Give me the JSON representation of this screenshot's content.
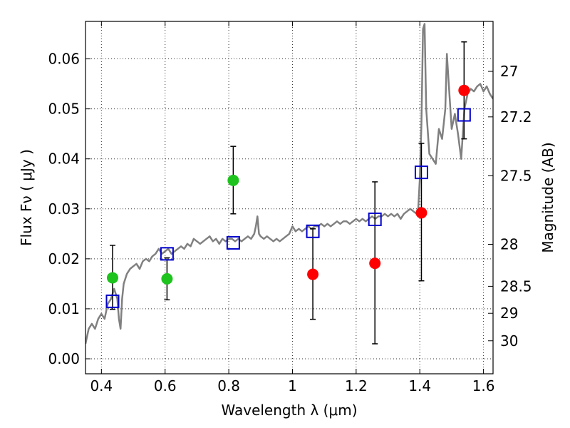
{
  "chart_data": {
    "type": "scatter",
    "xlabel": "Wavelength  λ (μm)",
    "ylabel": "Flux  Fν  ( μJy )",
    "y2label": "Magnitude (AB)",
    "xlim": [
      0.35,
      1.63
    ],
    "ylim": [
      -0.003,
      0.0675
    ],
    "xticks": [
      0.4,
      0.6,
      0.8,
      1.0,
      1.2,
      1.4,
      1.6
    ],
    "xtick_labels": [
      "0.4",
      "0.6",
      "0.8",
      "1",
      "1.2",
      "1.4",
      "1.6"
    ],
    "yticks": [
      0.0,
      0.01,
      0.02,
      0.03,
      0.04,
      0.05,
      0.06
    ],
    "ytick_labels": [
      "0.00",
      "0.01",
      "0.02",
      "0.03",
      "0.04",
      "0.05",
      "0.06"
    ],
    "y2ticks": [
      {
        "flux": 0.0575,
        "label": "27"
      },
      {
        "flux": 0.0484,
        "label": "27.2"
      },
      {
        "flux": 0.0366,
        "label": "27.5"
      },
      {
        "flux": 0.0229,
        "label": "28"
      },
      {
        "flux": 0.0145,
        "label": "28.5"
      },
      {
        "flux": 0.0091,
        "label": "29"
      },
      {
        "flux": 0.0036,
        "label": "30"
      }
    ],
    "grid": true,
    "series": [
      {
        "kind": "line",
        "color": "#808080",
        "points": [
          [
            0.35,
            0.003
          ],
          [
            0.36,
            0.006
          ],
          [
            0.37,
            0.007
          ],
          [
            0.38,
            0.006
          ],
          [
            0.39,
            0.008
          ],
          [
            0.4,
            0.009
          ],
          [
            0.41,
            0.008
          ],
          [
            0.42,
            0.011
          ],
          [
            0.43,
            0.012
          ],
          [
            0.44,
            0.014
          ],
          [
            0.45,
            0.012
          ],
          [
            0.455,
            0.008
          ],
          [
            0.46,
            0.006
          ],
          [
            0.465,
            0.012
          ],
          [
            0.47,
            0.015
          ],
          [
            0.48,
            0.017
          ],
          [
            0.49,
            0.018
          ],
          [
            0.5,
            0.0185
          ],
          [
            0.51,
            0.019
          ],
          [
            0.52,
            0.018
          ],
          [
            0.53,
            0.0195
          ],
          [
            0.54,
            0.02
          ],
          [
            0.55,
            0.0195
          ],
          [
            0.56,
            0.0205
          ],
          [
            0.57,
            0.021
          ],
          [
            0.58,
            0.022
          ],
          [
            0.59,
            0.021
          ],
          [
            0.6,
            0.0215
          ],
          [
            0.61,
            0.022
          ],
          [
            0.62,
            0.021
          ],
          [
            0.63,
            0.0215
          ],
          [
            0.64,
            0.022
          ],
          [
            0.65,
            0.0225
          ],
          [
            0.66,
            0.022
          ],
          [
            0.67,
            0.023
          ],
          [
            0.68,
            0.0225
          ],
          [
            0.69,
            0.024
          ],
          [
            0.7,
            0.0235
          ],
          [
            0.71,
            0.023
          ],
          [
            0.72,
            0.0235
          ],
          [
            0.73,
            0.024
          ],
          [
            0.74,
            0.0245
          ],
          [
            0.75,
            0.0235
          ],
          [
            0.76,
            0.024
          ],
          [
            0.77,
            0.023
          ],
          [
            0.78,
            0.024
          ],
          [
            0.79,
            0.0235
          ],
          [
            0.8,
            0.024
          ],
          [
            0.81,
            0.024
          ],
          [
            0.82,
            0.0235
          ],
          [
            0.83,
            0.024
          ],
          [
            0.84,
            0.0235
          ],
          [
            0.85,
            0.024
          ],
          [
            0.86,
            0.0245
          ],
          [
            0.87,
            0.024
          ],
          [
            0.88,
            0.025
          ],
          [
            0.885,
            0.0265
          ],
          [
            0.89,
            0.0285
          ],
          [
            0.895,
            0.025
          ],
          [
            0.9,
            0.0245
          ],
          [
            0.91,
            0.024
          ],
          [
            0.92,
            0.0245
          ],
          [
            0.93,
            0.024
          ],
          [
            0.94,
            0.0235
          ],
          [
            0.95,
            0.024
          ],
          [
            0.96,
            0.0235
          ],
          [
            0.97,
            0.024
          ],
          [
            0.98,
            0.0245
          ],
          [
            0.99,
            0.025
          ],
          [
            1.0,
            0.0265
          ],
          [
            1.01,
            0.0255
          ],
          [
            1.02,
            0.026
          ],
          [
            1.03,
            0.0255
          ],
          [
            1.04,
            0.026
          ],
          [
            1.05,
            0.0265
          ],
          [
            1.06,
            0.026
          ],
          [
            1.07,
            0.0265
          ],
          [
            1.08,
            0.0265
          ],
          [
            1.09,
            0.027
          ],
          [
            1.1,
            0.0265
          ],
          [
            1.11,
            0.027
          ],
          [
            1.12,
            0.0265
          ],
          [
            1.13,
            0.027
          ],
          [
            1.14,
            0.0275
          ],
          [
            1.15,
            0.027
          ],
          [
            1.16,
            0.0275
          ],
          [
            1.17,
            0.0275
          ],
          [
            1.18,
            0.027
          ],
          [
            1.19,
            0.0275
          ],
          [
            1.2,
            0.028
          ],
          [
            1.21,
            0.0275
          ],
          [
            1.22,
            0.028
          ],
          [
            1.23,
            0.0275
          ],
          [
            1.24,
            0.028
          ],
          [
            1.25,
            0.0285
          ],
          [
            1.26,
            0.028
          ],
          [
            1.27,
            0.0285
          ],
          [
            1.28,
            0.0285
          ],
          [
            1.29,
            0.029
          ],
          [
            1.3,
            0.0285
          ],
          [
            1.31,
            0.029
          ],
          [
            1.32,
            0.0285
          ],
          [
            1.33,
            0.029
          ],
          [
            1.34,
            0.028
          ],
          [
            1.35,
            0.029
          ],
          [
            1.36,
            0.0295
          ],
          [
            1.37,
            0.03
          ],
          [
            1.38,
            0.0295
          ],
          [
            1.39,
            0.029
          ],
          [
            1.395,
            0.03
          ],
          [
            1.4,
            0.036
          ],
          [
            1.405,
            0.047
          ],
          [
            1.41,
            0.066
          ],
          [
            1.415,
            0.067
          ],
          [
            1.42,
            0.05
          ],
          [
            1.43,
            0.041
          ],
          [
            1.44,
            0.04
          ],
          [
            1.45,
            0.039
          ],
          [
            1.46,
            0.046
          ],
          [
            1.47,
            0.044
          ],
          [
            1.48,
            0.05
          ],
          [
            1.485,
            0.061
          ],
          [
            1.49,
            0.056
          ],
          [
            1.5,
            0.046
          ],
          [
            1.51,
            0.049
          ],
          [
            1.52,
            0.045
          ],
          [
            1.53,
            0.04
          ],
          [
            1.54,
            0.05
          ],
          [
            1.55,
            0.053
          ],
          [
            1.56,
            0.054
          ],
          [
            1.57,
            0.0535
          ],
          [
            1.58,
            0.0545
          ],
          [
            1.59,
            0.055
          ],
          [
            1.6,
            0.0535
          ],
          [
            1.61,
            0.0545
          ],
          [
            1.62,
            0.053
          ],
          [
            1.63,
            0.052
          ]
        ]
      },
      {
        "kind": "points",
        "marker": "circle",
        "color": "#1ec31e",
        "points": [
          {
            "x": 0.435,
            "y": 0.0162,
            "err": [
              0.0099,
              0.0227
            ]
          },
          {
            "x": 0.606,
            "y": 0.016,
            "err": [
              0.0118,
              0.0202
            ]
          },
          {
            "x": 0.814,
            "y": 0.0357,
            "err": [
              0.029,
              0.0425
            ]
          }
        ]
      },
      {
        "kind": "points",
        "marker": "circle",
        "color": "#ff0000",
        "points": [
          {
            "x": 1.064,
            "y": 0.0169,
            "err": [
              0.0079,
              0.026
            ]
          },
          {
            "x": 1.259,
            "y": 0.0191,
            "err": [
              0.003,
              0.0354
            ]
          },
          {
            "x": 1.405,
            "y": 0.0292,
            "err": [
              0.0156,
              0.0431
            ]
          },
          {
            "x": 1.539,
            "y": 0.0537,
            "err": [
              0.044,
              0.0634
            ]
          }
        ]
      },
      {
        "kind": "points",
        "marker": "square",
        "color": "#0000cc",
        "points": [
          {
            "x": 0.435,
            "y": 0.0115
          },
          {
            "x": 0.606,
            "y": 0.021
          },
          {
            "x": 0.814,
            "y": 0.0232
          },
          {
            "x": 1.064,
            "y": 0.0255
          },
          {
            "x": 1.259,
            "y": 0.0279
          },
          {
            "x": 1.405,
            "y": 0.0373
          },
          {
            "x": 1.539,
            "y": 0.0488
          }
        ]
      }
    ]
  }
}
